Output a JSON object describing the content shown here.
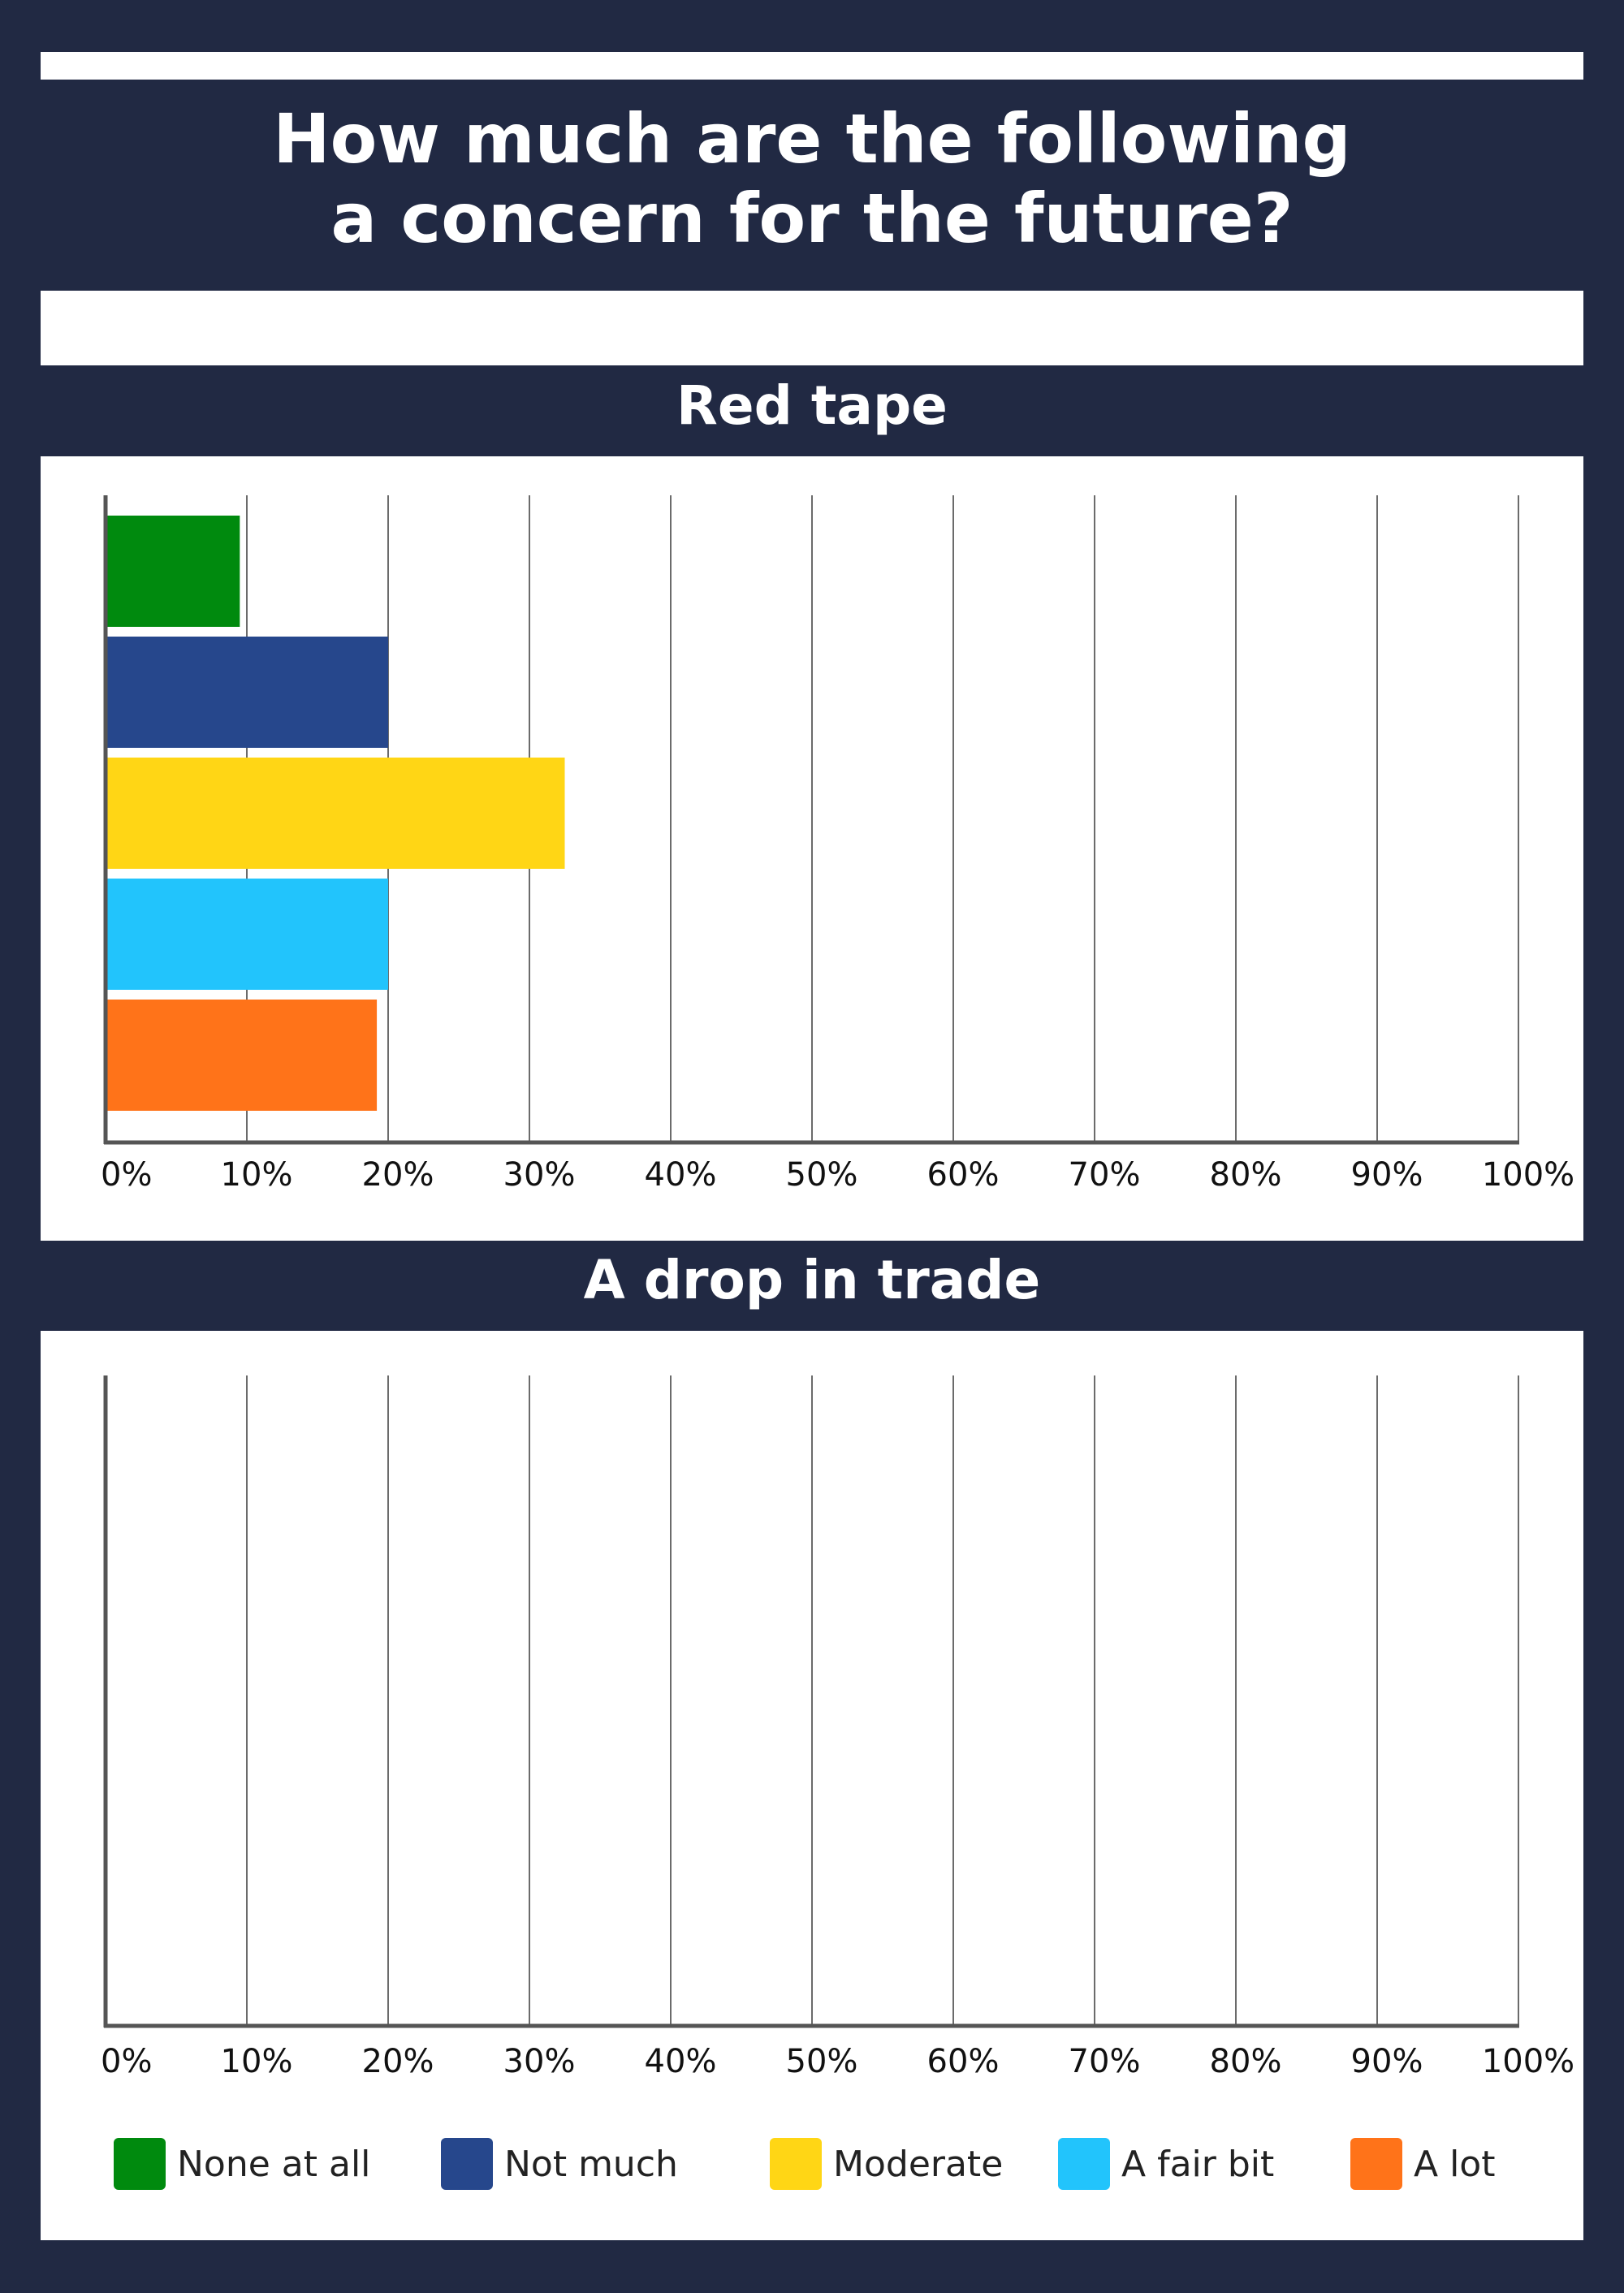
{
  "title_lines": [
    "How much are the following",
    "a concern for the future?"
  ],
  "colors": {
    "background": "#212943",
    "none_at_all": "#008a0e",
    "not_much": "#26478c",
    "moderate": "#ffd615",
    "a_fair_bit": "#22c4fc",
    "a_lot": "#ff7319"
  },
  "chart_data": [
    {
      "type": "bar",
      "orientation": "horizontal",
      "title": "Red tape",
      "xlim": [
        0,
        100
      ],
      "x_ticks": [
        "0%",
        "10%",
        "20%",
        "30%",
        "40%",
        "50%",
        "60%",
        "70%",
        "80%",
        "90%",
        "100%"
      ],
      "grid": true,
      "series": [
        {
          "name": "None at all",
          "value": 9.5,
          "color": "#008a0e"
        },
        {
          "name": "Not much",
          "value": 20,
          "color": "#26478c"
        },
        {
          "name": "Moderate",
          "value": 32.5,
          "color": "#ffd615"
        },
        {
          "name": "A fair bit",
          "value": 20,
          "color": "#22c4fc"
        },
        {
          "name": "A lot",
          "value": 19.2,
          "color": "#ff7319"
        }
      ]
    },
    {
      "type": "bar",
      "orientation": "horizontal",
      "title": "A drop in trade",
      "xlim": [
        0,
        100
      ],
      "x_ticks": [
        "0%",
        "10%",
        "20%",
        "30%",
        "40%",
        "50%",
        "60%",
        "70%",
        "80%",
        "90%",
        "100%"
      ],
      "grid": true,
      "series": []
    }
  ],
  "legend": {
    "placement": "bottom",
    "items": [
      {
        "label": "None at all",
        "color": "#008a0e"
      },
      {
        "label": "Not much",
        "color": "#26478c"
      },
      {
        "label": "Moderate",
        "color": "#ffd615"
      },
      {
        "label": "A fair bit",
        "color": "#22c4fc"
      },
      {
        "label": "A lot",
        "color": "#ff7319"
      }
    ]
  }
}
